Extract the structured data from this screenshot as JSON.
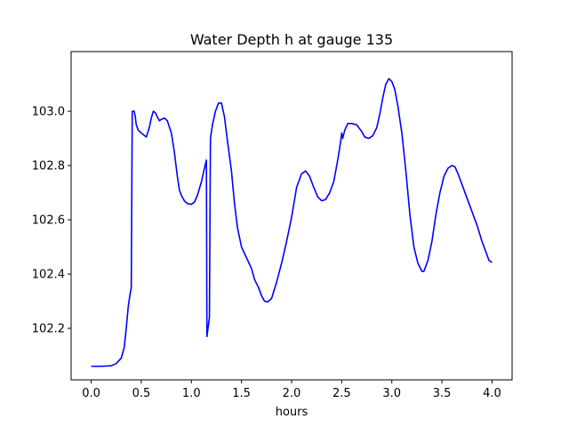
{
  "chart_data": {
    "type": "line",
    "title": "Water Depth h at gauge 135",
    "xlabel": "hours",
    "ylabel": "",
    "xlim": [
      -0.2,
      4.2
    ],
    "ylim": [
      102.01,
      103.22
    ],
    "xticks": [
      0.0,
      0.5,
      1.0,
      1.5,
      2.0,
      2.5,
      3.0,
      3.5,
      4.0
    ],
    "xtick_labels": [
      "0.0",
      "0.5",
      "1.0",
      "1.5",
      "2.0",
      "2.5",
      "3.0",
      "3.5",
      "4.0"
    ],
    "yticks": [
      102.2,
      102.4,
      102.6,
      102.8,
      103.0
    ],
    "ytick_labels": [
      "102.2",
      "102.4",
      "102.6",
      "102.8",
      "103.0"
    ],
    "grid": false,
    "legend": "none",
    "series": [
      {
        "color": "#0000ff",
        "points": [
          [
            0.0,
            102.06
          ],
          [
            0.1,
            102.06
          ],
          [
            0.2,
            102.062
          ],
          [
            0.25,
            102.07
          ],
          [
            0.3,
            102.09
          ],
          [
            0.33,
            102.13
          ],
          [
            0.35,
            102.2
          ],
          [
            0.37,
            102.28
          ],
          [
            0.39,
            102.33
          ],
          [
            0.4,
            102.35
          ],
          [
            0.41,
            103.0
          ],
          [
            0.43,
            103.0
          ],
          [
            0.44,
            102.98
          ],
          [
            0.45,
            102.95
          ],
          [
            0.47,
            102.93
          ],
          [
            0.5,
            102.92
          ],
          [
            0.55,
            102.905
          ],
          [
            0.58,
            102.94
          ],
          [
            0.6,
            102.975
          ],
          [
            0.62,
            103.0
          ],
          [
            0.64,
            102.995
          ],
          [
            0.66,
            102.98
          ],
          [
            0.68,
            102.965
          ],
          [
            0.7,
            102.97
          ],
          [
            0.73,
            102.975
          ],
          [
            0.76,
            102.965
          ],
          [
            0.8,
            102.92
          ],
          [
            0.83,
            102.85
          ],
          [
            0.86,
            102.76
          ],
          [
            0.88,
            102.71
          ],
          [
            0.9,
            102.69
          ],
          [
            0.93,
            102.67
          ],
          [
            0.96,
            102.66
          ],
          [
            1.0,
            102.657
          ],
          [
            1.03,
            102.665
          ],
          [
            1.06,
            102.69
          ],
          [
            1.1,
            102.74
          ],
          [
            1.13,
            102.79
          ],
          [
            1.15,
            102.82
          ],
          [
            1.155,
            102.17
          ],
          [
            1.18,
            102.24
          ],
          [
            1.19,
            102.9
          ],
          [
            1.21,
            102.95
          ],
          [
            1.24,
            103.0
          ],
          [
            1.27,
            103.03
          ],
          [
            1.3,
            103.03
          ],
          [
            1.33,
            102.98
          ],
          [
            1.36,
            102.89
          ],
          [
            1.4,
            102.78
          ],
          [
            1.43,
            102.66
          ],
          [
            1.46,
            102.57
          ],
          [
            1.5,
            102.5
          ],
          [
            1.55,
            102.46
          ],
          [
            1.6,
            102.42
          ],
          [
            1.63,
            102.38
          ],
          [
            1.67,
            102.35
          ],
          [
            1.7,
            102.32
          ],
          [
            1.73,
            102.3
          ],
          [
            1.76,
            102.297
          ],
          [
            1.8,
            102.31
          ],
          [
            1.85,
            102.37
          ],
          [
            1.9,
            102.44
          ],
          [
            1.95,
            102.52
          ],
          [
            2.0,
            102.61
          ],
          [
            2.05,
            102.72
          ],
          [
            2.1,
            102.77
          ],
          [
            2.14,
            102.78
          ],
          [
            2.18,
            102.76
          ],
          [
            2.22,
            102.72
          ],
          [
            2.26,
            102.685
          ],
          [
            2.3,
            102.67
          ],
          [
            2.34,
            102.675
          ],
          [
            2.38,
            102.7
          ],
          [
            2.42,
            102.74
          ],
          [
            2.46,
            102.82
          ],
          [
            2.49,
            102.89
          ],
          [
            2.5,
            102.92
          ],
          [
            2.51,
            102.9
          ],
          [
            2.53,
            102.93
          ],
          [
            2.56,
            102.955
          ],
          [
            2.6,
            102.955
          ],
          [
            2.65,
            102.95
          ],
          [
            2.7,
            102.925
          ],
          [
            2.73,
            102.905
          ],
          [
            2.77,
            102.9
          ],
          [
            2.81,
            102.91
          ],
          [
            2.85,
            102.94
          ],
          [
            2.88,
            102.99
          ],
          [
            2.91,
            103.05
          ],
          [
            2.94,
            103.1
          ],
          [
            2.97,
            103.12
          ],
          [
            3.0,
            103.11
          ],
          [
            3.03,
            103.08
          ],
          [
            3.06,
            103.02
          ],
          [
            3.1,
            102.92
          ],
          [
            3.14,
            102.78
          ],
          [
            3.18,
            102.62
          ],
          [
            3.22,
            102.5
          ],
          [
            3.26,
            102.44
          ],
          [
            3.3,
            102.41
          ],
          [
            3.32,
            102.41
          ],
          [
            3.36,
            102.45
          ],
          [
            3.4,
            102.52
          ],
          [
            3.44,
            102.62
          ],
          [
            3.48,
            102.7
          ],
          [
            3.52,
            102.76
          ],
          [
            3.56,
            102.79
          ],
          [
            3.6,
            102.8
          ],
          [
            3.63,
            102.795
          ],
          [
            3.66,
            102.77
          ],
          [
            3.7,
            102.73
          ],
          [
            3.75,
            102.68
          ],
          [
            3.8,
            102.63
          ],
          [
            3.85,
            102.58
          ],
          [
            3.9,
            102.52
          ],
          [
            3.94,
            102.48
          ],
          [
            3.97,
            102.45
          ],
          [
            4.0,
            102.443
          ]
        ]
      }
    ]
  }
}
